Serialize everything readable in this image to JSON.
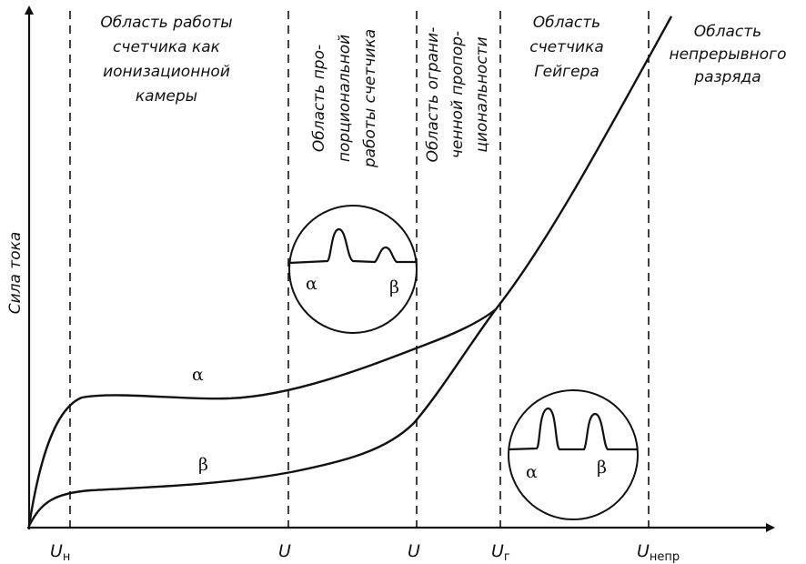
{
  "ylabel": "Сила тока",
  "regions": {
    "ionization": [
      "Область работы",
      "счетчика как",
      "ионизационной",
      "камеры"
    ],
    "proportional": [
      "Область про-",
      "порциональной",
      "работы счетчика"
    ],
    "limited": [
      "Область ограни-",
      "ченной пропор-",
      "циональности"
    ],
    "geiger": [
      "Область",
      "счетчика",
      "Гейгера"
    ],
    "continuous": [
      "Область",
      "непрерывного",
      "разряда"
    ]
  },
  "curves": {
    "alpha": "α",
    "beta": "β"
  },
  "insets": {
    "proportional": {
      "alpha": "α",
      "beta": "β"
    },
    "geiger": {
      "alpha": "α",
      "beta": "β"
    }
  },
  "ticks": [
    {
      "main": "U",
      "sub": "н"
    },
    {
      "main": "U",
      "sub": ""
    },
    {
      "main": "U",
      "sub": ""
    },
    {
      "main": "U",
      "sub": "г"
    },
    {
      "main": "U",
      "sub": "непр"
    }
  ]
}
